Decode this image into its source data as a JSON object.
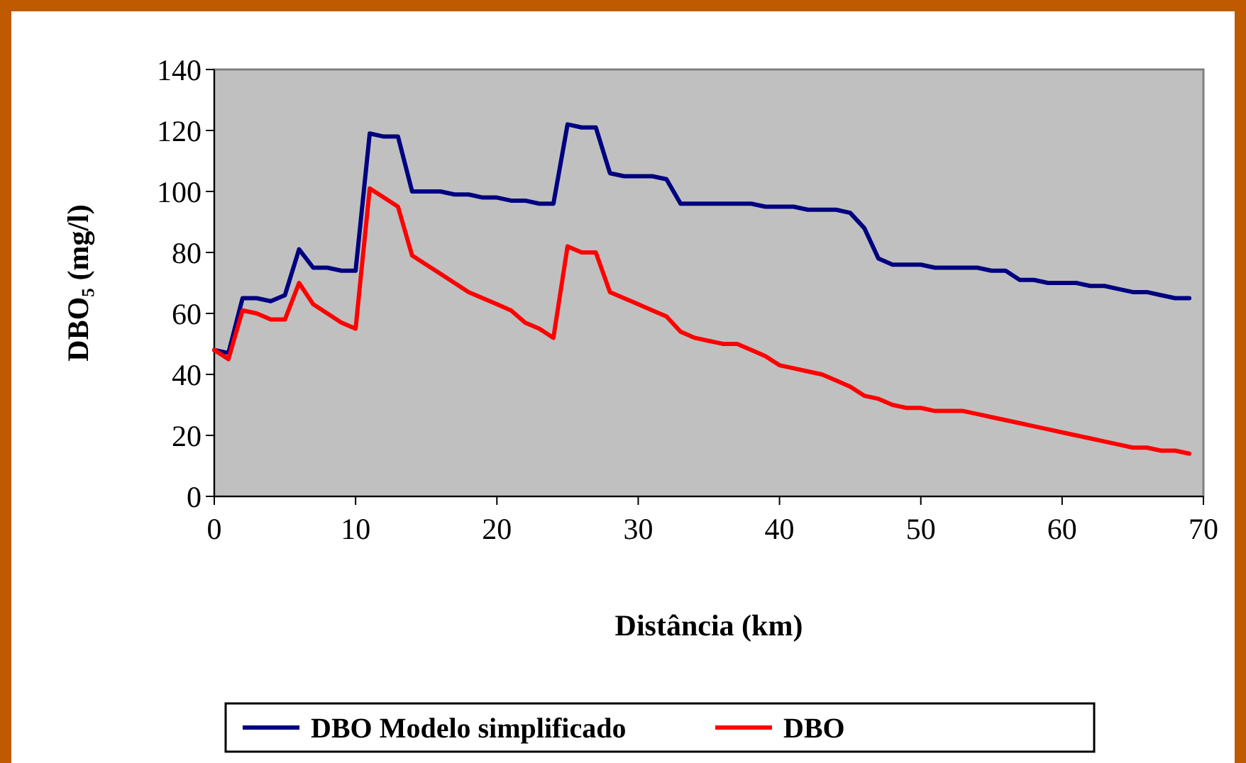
{
  "chart_data": {
    "type": "line",
    "xlabel": "Distância (km)",
    "ylabel": "DBO₅ (mg/l)",
    "x": [
      0,
      1,
      2,
      3,
      4,
      5,
      6,
      7,
      8,
      9,
      10,
      11,
      12,
      13,
      14,
      15,
      16,
      17,
      18,
      19,
      20,
      21,
      22,
      23,
      24,
      25,
      26,
      27,
      28,
      29,
      30,
      31,
      32,
      33,
      34,
      35,
      36,
      37,
      38,
      39,
      40,
      41,
      42,
      43,
      44,
      45,
      46,
      47,
      48,
      49,
      50,
      51,
      52,
      53,
      54,
      55,
      56,
      57,
      58,
      59,
      60,
      61,
      62,
      63,
      64,
      65,
      66,
      67,
      68,
      69
    ],
    "series": [
      {
        "name": "DBO Modelo simplificado",
        "color": "#000080",
        "values": [
          48,
          47,
          65,
          65,
          64,
          66,
          81,
          75,
          75,
          74,
          74,
          119,
          118,
          118,
          100,
          100,
          100,
          99,
          99,
          98,
          98,
          97,
          97,
          96,
          96,
          122,
          121,
          121,
          106,
          105,
          105,
          105,
          104,
          96,
          96,
          96,
          96,
          96,
          96,
          95,
          95,
          95,
          94,
          94,
          94,
          93,
          88,
          78,
          76,
          76,
          76,
          75,
          75,
          75,
          75,
          74,
          74,
          71,
          71,
          70,
          70,
          70,
          69,
          69,
          68,
          67,
          67,
          66,
          65,
          65
        ]
      },
      {
        "name": "DBO",
        "color": "#ff0000",
        "values": [
          48,
          45,
          61,
          60,
          58,
          58,
          70,
          63,
          60,
          57,
          55,
          101,
          98,
          95,
          79,
          76,
          73,
          70,
          67,
          65,
          63,
          61,
          57,
          55,
          52,
          82,
          80,
          80,
          67,
          65,
          63,
          61,
          59,
          54,
          52,
          51,
          50,
          50,
          48,
          46,
          43,
          42,
          41,
          40,
          38,
          36,
          33,
          32,
          30,
          29,
          29,
          28,
          28,
          28,
          27,
          26,
          25,
          24,
          23,
          22,
          21,
          20,
          19,
          18,
          17,
          16,
          16,
          15,
          15,
          14
        ]
      }
    ],
    "xlim": [
      0,
      70
    ],
    "xticks": [
      0,
      10,
      20,
      30,
      40,
      50,
      60,
      70
    ],
    "ylim": [
      0,
      140
    ],
    "yticks": [
      0,
      20,
      40,
      60,
      80,
      100,
      120,
      140
    ],
    "grid": false,
    "legend": "bottom",
    "marker": "none",
    "line_style": "solid"
  }
}
